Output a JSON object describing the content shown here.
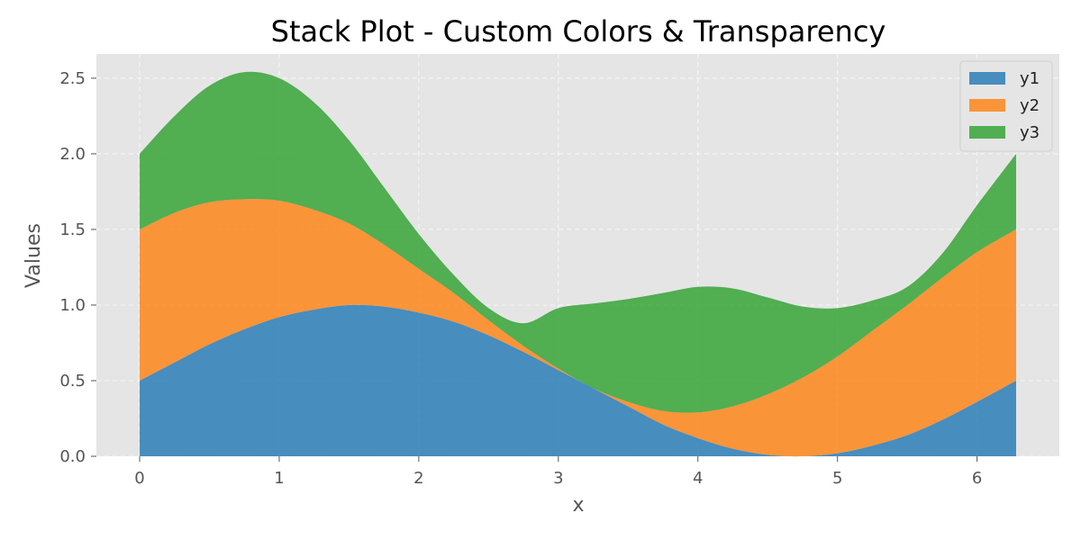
{
  "chart_data": {
    "type": "area",
    "stacked": true,
    "title": "Stack Plot - Custom Colors & Transparency",
    "xlabel": "x",
    "ylabel": "Values",
    "xlim": [
      -0.31,
      6.59
    ],
    "ylim": [
      0,
      2.66
    ],
    "x_ticks": [
      0,
      1,
      2,
      3,
      4,
      5,
      6
    ],
    "y_ticks": [
      0.0,
      0.5,
      1.0,
      1.5,
      2.0,
      2.5
    ],
    "y_tick_labels": [
      "0.0",
      "0.5",
      "1.0",
      "1.5",
      "2.0",
      "2.5"
    ],
    "grid": true,
    "legend_position": "top-right",
    "x": [
      0,
      0.25,
      0.5,
      0.75,
      1.0,
      1.25,
      1.5,
      1.75,
      2.0,
      2.25,
      2.5,
      2.75,
      3.0,
      3.25,
      3.5,
      3.75,
      4.0,
      4.25,
      4.5,
      4.75,
      5.0,
      5.25,
      5.5,
      5.75,
      6.0,
      6.28
    ],
    "series": [
      {
        "name": "y1",
        "color": "#1f77b4",
        "alpha": 0.8,
        "values": [
          0.5,
          0.62,
          0.74,
          0.84,
          0.92,
          0.97,
          1.0,
          0.99,
          0.95,
          0.89,
          0.8,
          0.69,
          0.57,
          0.45,
          0.33,
          0.21,
          0.12,
          0.05,
          0.01,
          0.0,
          0.02,
          0.07,
          0.14,
          0.24,
          0.36,
          0.5
        ]
      },
      {
        "name": "y2",
        "color": "#ff7f0e",
        "alpha": 0.8,
        "values": [
          1.0,
          0.99,
          0.94,
          0.86,
          0.77,
          0.66,
          0.54,
          0.41,
          0.29,
          0.19,
          0.1,
          0.04,
          0.01,
          0.0,
          0.03,
          0.09,
          0.17,
          0.28,
          0.4,
          0.52,
          0.64,
          0.76,
          0.86,
          0.94,
          0.99,
          1.0
        ]
      },
      {
        "name": "y3",
        "color": "#2ca02c",
        "alpha": 0.8,
        "values": [
          0.5,
          0.64,
          0.77,
          0.84,
          0.81,
          0.71,
          0.55,
          0.38,
          0.23,
          0.12,
          0.08,
          0.15,
          0.4,
          0.56,
          0.68,
          0.78,
          0.83,
          0.78,
          0.64,
          0.47,
          0.32,
          0.2,
          0.12,
          0.16,
          0.31,
          0.5
        ]
      }
    ]
  }
}
